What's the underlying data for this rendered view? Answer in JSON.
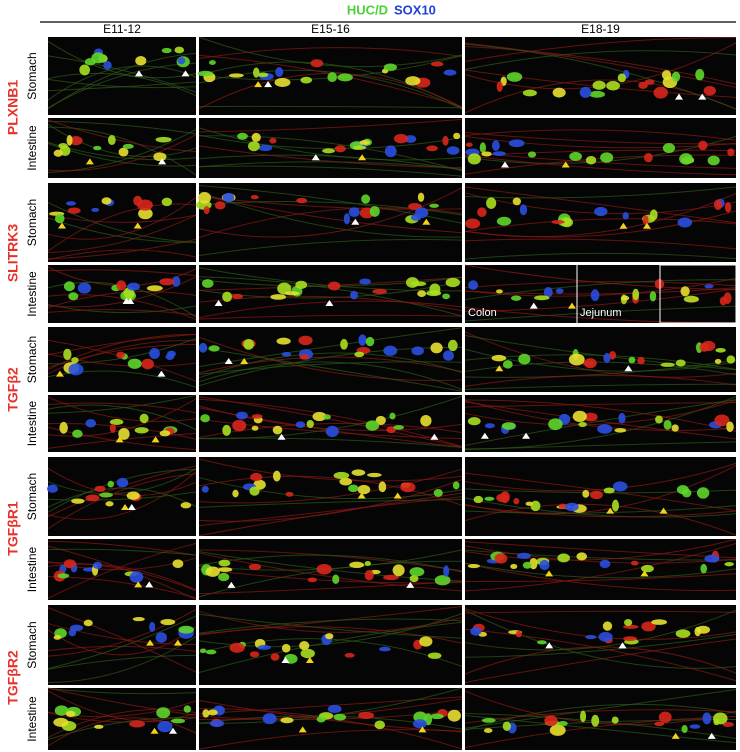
{
  "header": {
    "markers": [
      {
        "text": "HUC/D",
        "color": "#4cd137"
      },
      {
        "text": "SOX10",
        "color": "#1f3fd6"
      }
    ]
  },
  "columns": [
    "E11-12",
    "E15-16",
    "E18-19"
  ],
  "groups": [
    {
      "gene": "PLXNB1",
      "rows": [
        "Stomach",
        "Intestine"
      ]
    },
    {
      "gene": "SLITRK3",
      "rows": [
        "Stomach",
        "Intestine"
      ]
    },
    {
      "gene": "TGFβ2",
      "rows": [
        "Stomach",
        "Intestine"
      ]
    },
    {
      "gene": "TGFβR1",
      "rows": [
        "Stomach",
        "Intestine"
      ]
    },
    {
      "gene": "TGFβR2",
      "rows": [
        "Stomach",
        "Intestine"
      ]
    }
  ],
  "insets": {
    "colon": "Colon",
    "jejunum": "Jejunum"
  }
}
